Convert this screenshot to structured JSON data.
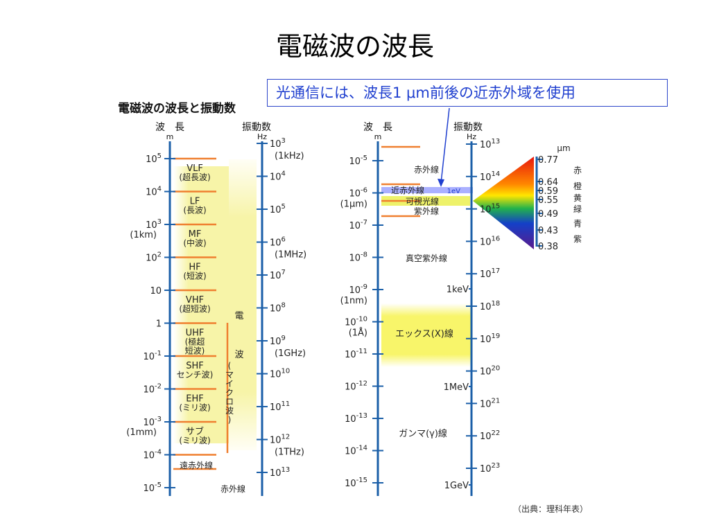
{
  "title": "電磁波の波長",
  "callout": "光通信には、波長1 μm前後の近赤外域を使用",
  "diagram_heading": "電磁波の波長と振動数",
  "source": "（出典：理科年表）",
  "colors": {
    "axis": "#1b5fa8",
    "band_line": "#ef7f2f",
    "highlight": "#f6f3b0",
    "callout_border": "#2b44c9",
    "ir_band": "#aab0ff"
  },
  "left": {
    "wavelength_header": "波　長",
    "wavelength_unit": "m",
    "frequency_header": "振動数",
    "frequency_unit": "Hz",
    "wavelength_ticks": [
      {
        "base": "10",
        "exp": "5",
        "note": ""
      },
      {
        "base": "10",
        "exp": "4",
        "note": ""
      },
      {
        "base": "10",
        "exp": "3",
        "note": "(1km)"
      },
      {
        "base": "10",
        "exp": "2",
        "note": ""
      },
      {
        "base": "10",
        "exp": "",
        "note": ""
      },
      {
        "base": "1",
        "exp": "",
        "note": ""
      },
      {
        "base": "10",
        "exp": "-1",
        "note": ""
      },
      {
        "base": "10",
        "exp": "-2",
        "note": ""
      },
      {
        "base": "10",
        "exp": "-3",
        "note": "(1mm)"
      },
      {
        "base": "10",
        "exp": "-4",
        "note": ""
      },
      {
        "base": "10",
        "exp": "-5",
        "note": ""
      }
    ],
    "frequency_ticks": [
      {
        "base": "10",
        "exp": "3",
        "note": "(1kHz)"
      },
      {
        "base": "10",
        "exp": "4",
        "note": ""
      },
      {
        "base": "10",
        "exp": "5",
        "note": ""
      },
      {
        "base": "10",
        "exp": "6",
        "note": "(1MHz)"
      },
      {
        "base": "10",
        "exp": "7",
        "note": ""
      },
      {
        "base": "10",
        "exp": "8",
        "note": ""
      },
      {
        "base": "10",
        "exp": "9",
        "note": "(1GHz)"
      },
      {
        "base": "10",
        "exp": "10",
        "note": ""
      },
      {
        "base": "10",
        "exp": "11",
        "note": ""
      },
      {
        "base": "10",
        "exp": "12",
        "note": "(1THz)"
      },
      {
        "base": "10",
        "exp": "13",
        "note": ""
      }
    ],
    "bands": [
      {
        "line1": "VLF",
        "line2": "(超長波)"
      },
      {
        "line1": "LF",
        "line2": "(長波)"
      },
      {
        "line1": "MF",
        "line2": "(中波)"
      },
      {
        "line1": "HF",
        "line2": "(短波)"
      },
      {
        "line1": "VHF",
        "line2": "(超短波)"
      },
      {
        "line1": "UHF",
        "line2": "(極超",
        "line3": "短波)"
      },
      {
        "line1": "SHF",
        "line2": "センチ波)"
      },
      {
        "line1": "EHF",
        "line2": "(ミリ波)"
      },
      {
        "line1": "サブ",
        "line2": "(ミリ波)"
      }
    ],
    "far_infrared": "遠赤外線",
    "infrared": "赤外線",
    "radio_wave_chars": [
      "電",
      "波"
    ],
    "microwave": "(マイクロ波)"
  },
  "right": {
    "wavelength_header": "波　長",
    "wavelength_unit": "m",
    "frequency_header": "振動数",
    "frequency_unit": "Hz",
    "wavelength_ticks": [
      {
        "base": "10",
        "exp": "-5",
        "note": ""
      },
      {
        "base": "10",
        "exp": "-6",
        "note": "(1μm)"
      },
      {
        "base": "10",
        "exp": "-7",
        "note": ""
      },
      {
        "base": "10",
        "exp": "-8",
        "note": ""
      },
      {
        "base": "10",
        "exp": "-9",
        "note": "(1nm)"
      },
      {
        "base": "10",
        "exp": "-10",
        "note": "(1Å)"
      },
      {
        "base": "10",
        "exp": "-11",
        "note": ""
      },
      {
        "base": "10",
        "exp": "-12",
        "note": ""
      },
      {
        "base": "10",
        "exp": "-13",
        "note": ""
      },
      {
        "base": "10",
        "exp": "-14",
        "note": ""
      },
      {
        "base": "10",
        "exp": "-15",
        "note": ""
      }
    ],
    "frequency_ticks": [
      {
        "base": "10",
        "exp": "13",
        "note": ""
      },
      {
        "base": "10",
        "exp": "14",
        "note": ""
      },
      {
        "base": "10",
        "exp": "15",
        "note": ""
      },
      {
        "base": "10",
        "exp": "16",
        "note": ""
      },
      {
        "base": "10",
        "exp": "17",
        "note": ""
      },
      {
        "base": "10",
        "exp": "18",
        "note": ""
      },
      {
        "base": "10",
        "exp": "19",
        "note": ""
      },
      {
        "base": "10",
        "exp": "20",
        "note": ""
      },
      {
        "base": "10",
        "exp": "21",
        "note": ""
      },
      {
        "base": "10",
        "exp": "22",
        "note": ""
      },
      {
        "base": "10",
        "exp": "23",
        "note": ""
      }
    ],
    "energy_labels": [
      "1eV",
      "1keV",
      "1MeV",
      "1GeV"
    ],
    "regions": {
      "infrared": "赤外線",
      "near_infrared": "近赤外線",
      "visible": "可視光線",
      "ultraviolet": "紫外線",
      "vacuum_uv": "真空紫外線",
      "xray": "エックス(X)線",
      "gamma": "ガンマ(γ)線"
    }
  },
  "spectrum": {
    "unit": "μm",
    "wavelengths": [
      "0.77",
      "0.64",
      "0.59",
      "0.55",
      "0.49",
      "0.43",
      "0.38"
    ],
    "colors": [
      "赤",
      "橙",
      "黄",
      "緑",
      "青",
      "紫"
    ]
  }
}
